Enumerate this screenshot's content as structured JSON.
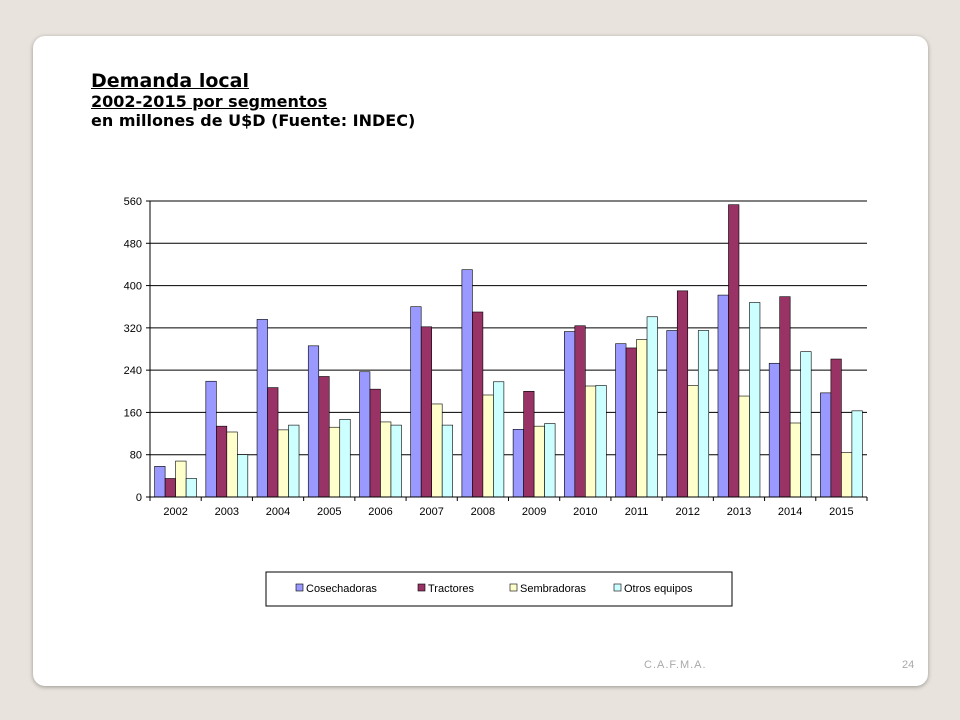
{
  "slide": {
    "title": "Demanda local",
    "subtitle": "2002-2015 por segmentos",
    "subtitle2": "en millones de U$D (Fuente: INDEC)",
    "footer": "C.A.F.M.A.",
    "page_number": "24"
  },
  "chart_data": {
    "type": "bar",
    "categories": [
      "2002",
      "2003",
      "2004",
      "2005",
      "2006",
      "2007",
      "2008",
      "2009",
      "2010",
      "2011",
      "2012",
      "2013",
      "2014",
      "2015"
    ],
    "series": [
      {
        "name": "Cosechadoras",
        "color": "#9999ff",
        "values": [
          58,
          219,
          336,
          286,
          237,
          360,
          430,
          128,
          313,
          290,
          315,
          382,
          253,
          197
        ]
      },
      {
        "name": "Tractores",
        "color": "#993366",
        "values": [
          35,
          134,
          207,
          228,
          204,
          322,
          350,
          200,
          324,
          282,
          390,
          553,
          379,
          261
        ]
      },
      {
        "name": "Sembradoras",
        "color": "#ffffcc",
        "values": [
          68,
          123,
          127,
          132,
          142,
          176,
          193,
          134,
          210,
          298,
          211,
          191,
          140,
          84
        ]
      },
      {
        "name": "Otros equipos",
        "color": "#ccffff",
        "values": [
          35,
          80,
          136,
          147,
          136,
          136,
          218,
          139,
          211,
          341,
          315,
          368,
          275,
          163
        ]
      }
    ],
    "yticks": [
      0,
      80,
      160,
      240,
      320,
      400,
      480,
      560
    ],
    "ylim": [
      0,
      560
    ],
    "grid": true,
    "legend_position": "bottom"
  }
}
